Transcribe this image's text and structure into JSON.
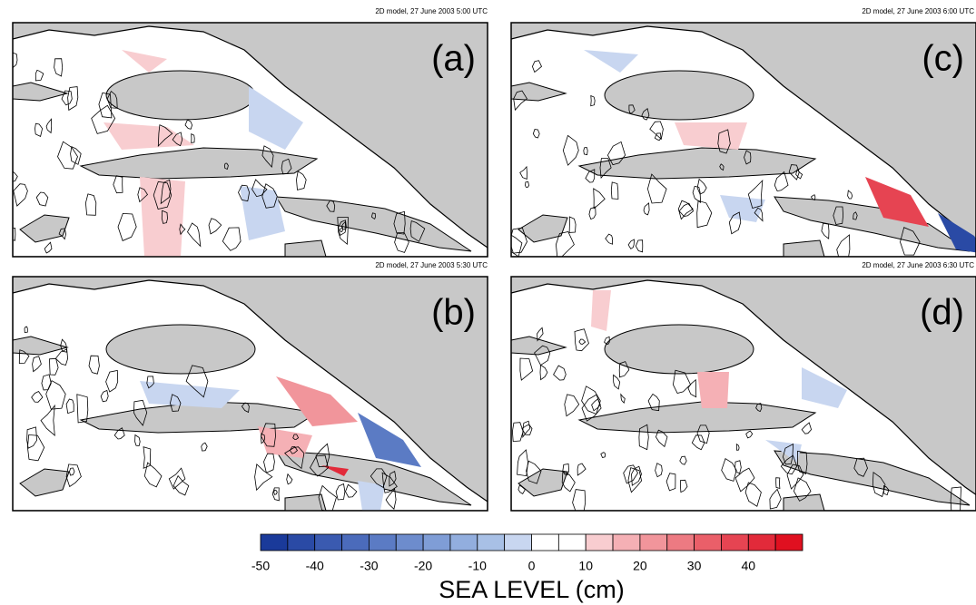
{
  "panels": [
    {
      "label": "(a)",
      "title": "2D model, 27 June 2003 5:00 UTC"
    },
    {
      "label": "(b)",
      "title": "2D model, 27 June 2003 5:30 UTC"
    },
    {
      "label": "(c)",
      "title": "2D model, 27 June 2003 6:00 UTC"
    },
    {
      "label": "(d)",
      "title": "2D model, 27 June 2003 6:30 UTC"
    }
  ],
  "colorbar": {
    "label": "SEA LEVEL (cm)",
    "lim": [
      -50,
      50
    ],
    "ticks": [
      -50,
      -40,
      -30,
      -20,
      -10,
      0,
      10,
      20,
      30,
      40
    ],
    "colors": [
      "#1a3a9a",
      "#2a4aa5",
      "#3a5ab0",
      "#4b6bbb",
      "#5b7bc4",
      "#6d8ccd",
      "#7f9dd6",
      "#92aede",
      "#a8c0e6",
      "#c8d6f0",
      "#ffffff",
      "#ffffff",
      "#f8cdd0",
      "#f5b0b5",
      "#f1959b",
      "#ed7a82",
      "#ea5f69",
      "#e64452",
      "#e22a3a",
      "#e01020"
    ]
  }
}
